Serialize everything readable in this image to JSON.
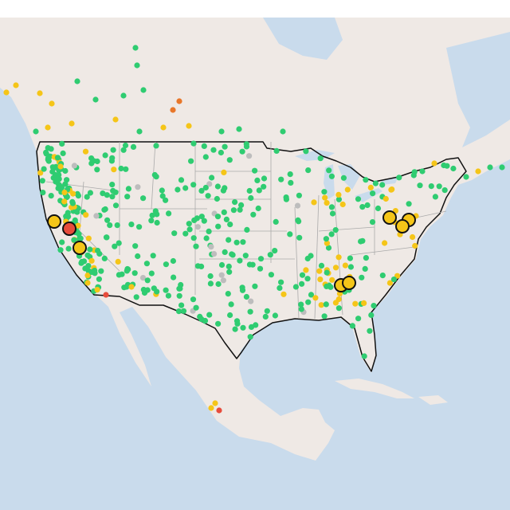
{
  "marker_colors": [
    "#2fcc71",
    "#f5c518",
    "#e8772a",
    "#e74c3c",
    "#bdbdbd"
  ]
}
